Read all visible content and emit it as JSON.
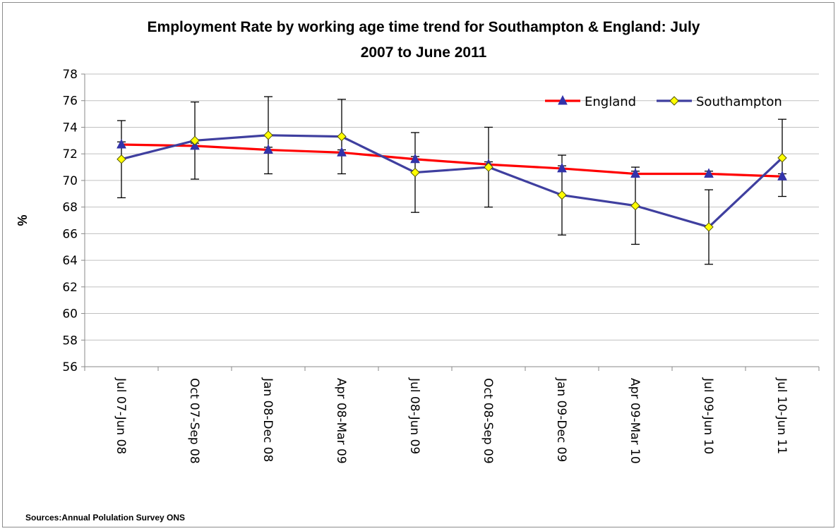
{
  "chart_data": {
    "type": "line",
    "title_lines": [
      "Employment Rate by working age time trend for Southampton & England: July",
      "2007 to June 2011"
    ],
    "xlabel": "",
    "ylabel": "%",
    "ylim": [
      56,
      78
    ],
    "ytick_step": 2,
    "grid": true,
    "legend_position": "top-right",
    "categories": [
      "Jul 07-Jun 08",
      "Oct 07-Sep 08",
      "Jan 08-Dec 08",
      "Apr 08-Mar 09",
      "Jul 08-Jun 09",
      "Oct 08-Sep 09",
      "Jan 09-Dec 09",
      "Apr 09-Mar 10",
      "Jul 09-Jun 10",
      "Jul 10-Jun 11"
    ],
    "series": [
      {
        "name": "England",
        "color": "#ff0000",
        "marker": "triangle",
        "marker_color": "#3333aa",
        "values": [
          72.7,
          72.6,
          72.3,
          72.1,
          71.6,
          71.2,
          70.9,
          70.5,
          70.5,
          70.3
        ],
        "error_low": [
          72.5,
          72.4,
          72.1,
          71.9,
          71.4,
          71.0,
          70.7,
          70.3,
          70.3,
          70.1
        ],
        "error_high": [
          72.9,
          72.8,
          72.5,
          72.3,
          71.8,
          71.4,
          71.1,
          70.7,
          70.7,
          70.5
        ]
      },
      {
        "name": "Southampton",
        "color": "#3f3f9f",
        "marker": "diamond",
        "marker_color": "#ffff00",
        "values": [
          71.6,
          73.0,
          73.4,
          73.3,
          70.6,
          71.0,
          68.9,
          68.1,
          66.5,
          71.7
        ],
        "error_low": [
          68.7,
          70.1,
          70.5,
          70.5,
          67.6,
          68.0,
          65.9,
          65.2,
          63.7,
          68.8
        ],
        "error_high": [
          74.5,
          75.9,
          76.3,
          76.1,
          73.6,
          74.0,
          71.9,
          71.0,
          69.3,
          74.6
        ]
      }
    ]
  },
  "source": "Sources:Annual Polulation Survey ONS"
}
